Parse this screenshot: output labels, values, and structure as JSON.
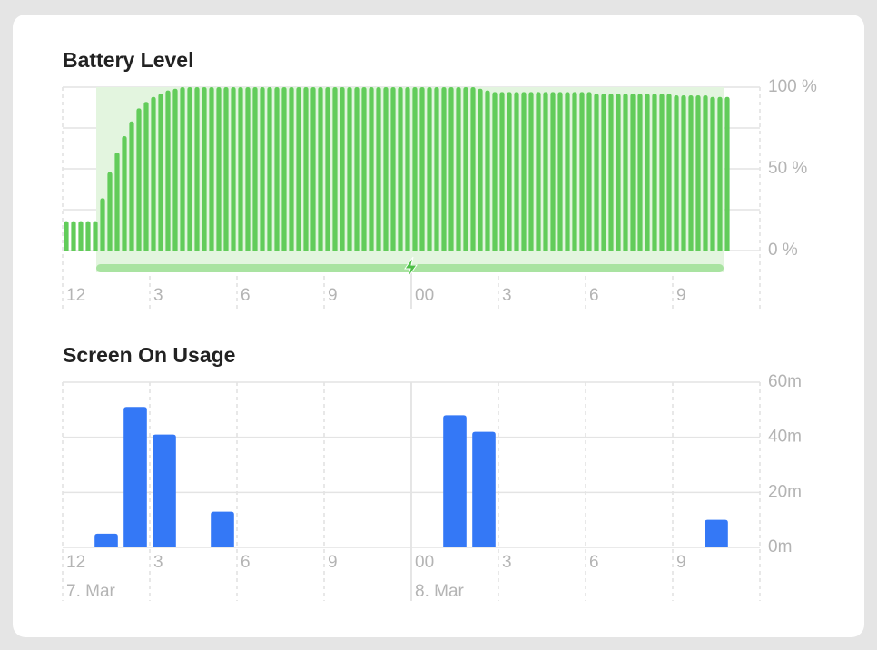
{
  "chart_data": [
    {
      "type": "bar",
      "title": "Battery Level",
      "color": "#62cc5a",
      "x": [
        0,
        0.25,
        0.5,
        0.75,
        1,
        1.25,
        1.5,
        1.75,
        2,
        2.25,
        2.5,
        2.75,
        3,
        3.25,
        3.5,
        3.75,
        4,
        4.25,
        4.5,
        4.75,
        5,
        5.25,
        5.5,
        5.75,
        6,
        6.25,
        6.5,
        6.75,
        7,
        7.25,
        7.5,
        7.75,
        8,
        8.25,
        8.5,
        8.75,
        9,
        9.25,
        9.5,
        9.75,
        10,
        10.25,
        10.5,
        10.75,
        11,
        11.25,
        11.5,
        11.75,
        12,
        12.25,
        12.5,
        12.75,
        13,
        13.25,
        13.5,
        13.75,
        14,
        14.25,
        14.5,
        14.75,
        15,
        15.25,
        15.5,
        15.75,
        16,
        16.25,
        16.5,
        16.75,
        17,
        17.25,
        17.5,
        17.75,
        18,
        18.25,
        18.5,
        18.75,
        19,
        19.25,
        19.5,
        19.75,
        20,
        20.25,
        20.5,
        20.75,
        21,
        21.25,
        21.5,
        21.75,
        22,
        22.25,
        22.5,
        22.75
      ],
      "values": [
        18,
        18,
        18,
        18,
        18,
        32,
        48,
        60,
        70,
        79,
        87,
        91,
        94,
        96,
        98,
        99,
        100,
        100,
        100,
        100,
        100,
        100,
        100,
        100,
        100,
        100,
        100,
        100,
        100,
        100,
        100,
        100,
        100,
        100,
        100,
        100,
        100,
        100,
        100,
        100,
        100,
        100,
        100,
        100,
        100,
        100,
        100,
        100,
        100,
        100,
        100,
        100,
        100,
        100,
        100,
        100,
        100,
        99,
        98,
        97,
        97,
        97,
        97,
        97,
        97,
        97,
        97,
        97,
        97,
        97,
        97,
        97,
        97,
        96,
        96,
        96,
        96,
        96,
        96,
        96,
        96,
        96,
        96,
        96,
        95,
        95,
        95,
        95,
        95,
        94,
        94,
        94
      ],
      "xlim": [
        0,
        24
      ],
      "xticks": [
        {
          "value": 0,
          "label": "12"
        },
        3,
        6,
        9,
        {
          "value": 12,
          "label": "00"
        },
        {
          "value": 15,
          "label": "3"
        },
        {
          "value": 18,
          "label": "6"
        },
        {
          "value": 21,
          "label": "9"
        }
      ],
      "ylim": [
        0,
        100
      ],
      "yticks": [
        {
          "value": 0,
          "label": "0 %"
        },
        {
          "value": 50,
          "label": "50 %"
        },
        {
          "value": 100,
          "label": "100 %"
        }
      ],
      "y_gridlines": [
        0,
        25,
        50,
        75,
        100
      ]
    },
    {
      "type": "bar",
      "title": "Screen On Usage",
      "color": "#3478f6",
      "x": [
        1,
        2,
        3,
        5,
        13,
        14,
        22
      ],
      "values": [
        5,
        51,
        41,
        13,
        48,
        42,
        10
      ],
      "xlim": [
        0,
        24
      ],
      "xticks": [
        {
          "value": 0,
          "label": "12"
        },
        3,
        6,
        9,
        {
          "value": 12,
          "label": "00"
        },
        {
          "value": 15,
          "label": "3"
        },
        {
          "value": 18,
          "label": "6"
        },
        {
          "value": 21,
          "label": "9"
        }
      ],
      "date_labels": [
        {
          "value": 0,
          "label": "7. Mar"
        },
        {
          "value": 12,
          "label": "8. Mar"
        }
      ],
      "ylim": [
        0,
        60
      ],
      "yticks": [
        {
          "value": 0,
          "label": "0m"
        },
        {
          "value": 20,
          "label": "20m"
        },
        {
          "value": 40,
          "label": "40m"
        },
        {
          "value": 60,
          "label": "60m"
        }
      ]
    }
  ]
}
